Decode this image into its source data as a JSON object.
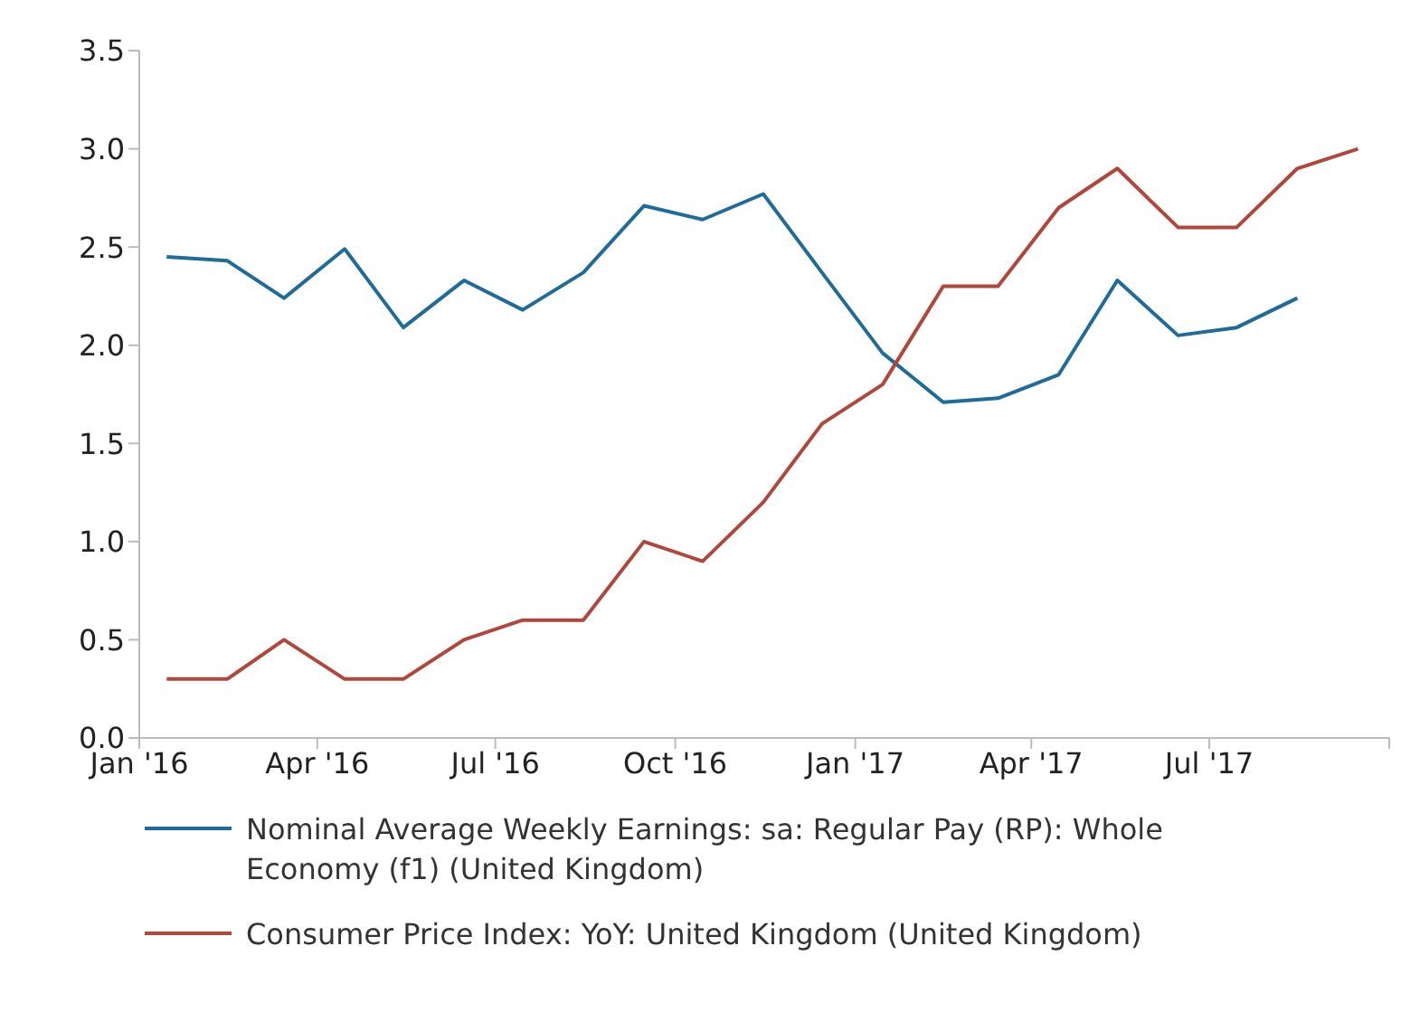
{
  "chart_data": {
    "type": "line",
    "xlim": [
      "2016-01-01",
      "2017-10-01"
    ],
    "xticks": [
      {
        "value": "2016-01-01",
        "label": "Jan '16"
      },
      {
        "value": "2016-04-01",
        "label": "Apr '16"
      },
      {
        "value": "2016-07-01",
        "label": "Jul '16"
      },
      {
        "value": "2016-10-01",
        "label": "Oct '16"
      },
      {
        "value": "2017-01-01",
        "label": "Jan '17"
      },
      {
        "value": "2017-04-01",
        "label": "Apr '17"
      },
      {
        "value": "2017-07-01",
        "label": "Jul '17"
      },
      {
        "value": "2017-10-01",
        "label": null
      }
    ],
    "ylim": [
      0,
      3.5
    ],
    "yticks": [
      {
        "value": 0,
        "label": "0.0"
      },
      {
        "value": 0.5,
        "label": "0.5"
      },
      {
        "value": 1,
        "label": "1.0"
      },
      {
        "value": 1.5,
        "label": "1.5"
      },
      {
        "value": 2,
        "label": "2.0"
      },
      {
        "value": 2.5,
        "label": "2.5"
      },
      {
        "value": 3,
        "label": "3.0"
      },
      {
        "value": 3.5,
        "label": "3.5"
      }
    ],
    "grid": false,
    "legend": "bottom",
    "marker": "none",
    "line_style": "solid",
    "series": [
      {
        "name": "Nominal Average Weekly Earnings: sa: Regular Pay (RP): Whole Economy (f1) (United Kingdom)",
        "color": "#1f6b9a",
        "x": [
          "2016-01-15",
          "2016-02-15",
          "2016-03-15",
          "2016-04-15",
          "2016-05-15",
          "2016-06-15",
          "2016-07-15",
          "2016-08-15",
          "2016-09-15",
          "2016-10-15",
          "2016-11-15",
          "2016-12-15",
          "2017-01-15",
          "2017-02-15",
          "2017-03-15",
          "2017-04-15",
          "2017-05-15",
          "2017-06-15",
          "2017-07-15",
          "2017-08-15"
        ],
        "values": [
          2.45,
          2.43,
          2.24,
          2.49,
          2.09,
          2.33,
          2.18,
          2.37,
          2.71,
          2.64,
          2.77,
          2.37,
          1.96,
          1.71,
          1.73,
          1.85,
          2.33,
          2.05,
          2.09,
          2.24
        ]
      },
      {
        "name": "Consumer Price Index: YoY: United Kingdom (United Kingdom)",
        "color": "#b0473a",
        "x": [
          "2016-01-15",
          "2016-02-15",
          "2016-03-15",
          "2016-04-15",
          "2016-05-15",
          "2016-06-15",
          "2016-07-15",
          "2016-08-15",
          "2016-09-15",
          "2016-10-15",
          "2016-11-15",
          "2016-12-15",
          "2017-01-15",
          "2017-02-15",
          "2017-03-15",
          "2017-04-15",
          "2017-05-15",
          "2017-06-15",
          "2017-07-15",
          "2017-08-15",
          "2017-09-15"
        ],
        "values": [
          0.3,
          0.3,
          0.5,
          0.3,
          0.3,
          0.5,
          0.6,
          0.6,
          1.0,
          0.9,
          1.2,
          1.6,
          1.8,
          2.3,
          2.3,
          2.7,
          2.9,
          2.6,
          2.6,
          2.9,
          3.0
        ]
      }
    ]
  }
}
